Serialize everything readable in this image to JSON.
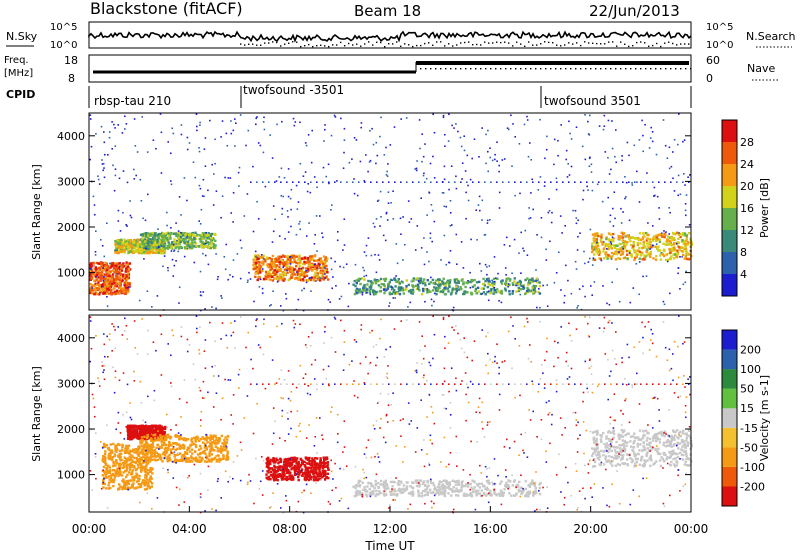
{
  "header": {
    "station": "Blackstone (fitACF)",
    "beam": "Beam 18",
    "date": "22/Jun/2013"
  },
  "top_panels": {
    "nsky_label": "N.Sky",
    "nsky_ticks": [
      "10^5",
      "10^0"
    ],
    "nsearch_label": "N.Search",
    "nsearch_ticks": [
      "10^5",
      "10^0"
    ],
    "freq_label_line1": "Freq.",
    "freq_label_line2": "[MHz]",
    "freq_ticks": [
      "18",
      "8"
    ],
    "nave_label": "Nave",
    "nave_ticks": [
      "60",
      "0"
    ],
    "cpid_label": "CPID",
    "cpid_segments": [
      {
        "label": "rbsp-tau 210",
        "start_hour": 0
      },
      {
        "label": "twofsound -3501",
        "start_hour": 6
      },
      {
        "label": "twofsound 3501",
        "start_hour": 18
      }
    ]
  },
  "chart_data": [
    {
      "type": "heatmap",
      "title": "",
      "xlabel": "",
      "ylabel": "Slant Range [km]",
      "xlim": [
        0,
        24
      ],
      "ylim": [
        180,
        4500
      ],
      "yticks": [
        1000,
        2000,
        3000,
        4000
      ],
      "colorbar": {
        "label": "Power [dB]",
        "ticks": [
          4,
          8,
          12,
          16,
          20,
          24,
          28
        ],
        "range": [
          0,
          32
        ],
        "colors": [
          "#1d1dd0",
          "#2c62ac",
          "#3a8a7a",
          "#66b04c",
          "#d2d21a",
          "#f59a14",
          "#ee5a0a",
          "#dc1010"
        ]
      },
      "scatter_regions": [
        {
          "t": [
            0.0,
            1.6
          ],
          "r": [
            550,
            1250
          ],
          "value": 26
        },
        {
          "t": [
            1.0,
            3.0
          ],
          "r": [
            1450,
            1750
          ],
          "value": 18
        },
        {
          "t": [
            2.0,
            5.0
          ],
          "r": [
            1550,
            1900
          ],
          "value": 14
        },
        {
          "t": [
            6.5,
            9.5
          ],
          "r": [
            850,
            1400
          ],
          "value": 24
        },
        {
          "t": [
            10.5,
            18.0
          ],
          "r": [
            550,
            900
          ],
          "value": 12
        },
        {
          "t": [
            20.0,
            24.0
          ],
          "r": [
            1300,
            1900
          ],
          "value": 20
        }
      ]
    },
    {
      "type": "heatmap",
      "title": "",
      "xlabel": "Time UT",
      "ylabel": "Slant Range [km]",
      "xlim": [
        0,
        24
      ],
      "ylim": [
        180,
        4500
      ],
      "xticks": [
        "00:00",
        "04:00",
        "08:00",
        "12:00",
        "16:00",
        "20:00",
        "00:00"
      ],
      "yticks": [
        1000,
        2000,
        3000,
        4000
      ],
      "colorbar": {
        "label": "Velocity [m s-1]",
        "ticks": [
          "200",
          "100",
          "50",
          "15",
          "-15",
          "-50",
          "-100",
          "-200"
        ],
        "range": [
          -250,
          250
        ],
        "colors": [
          "#dc1010",
          "#ee5a0a",
          "#f59a14",
          "#f5c030",
          "#c8c8c8",
          "#60c040",
          "#2c8a3c",
          "#2c62ac",
          "#1d1dd0"
        ]
      },
      "scatter_regions": [
        {
          "t": [
            0.5,
            2.5
          ],
          "r": [
            700,
            1700
          ],
          "value": -60
        },
        {
          "t": [
            1.5,
            3.0
          ],
          "r": [
            1800,
            2100
          ],
          "value": -220
        },
        {
          "t": [
            2.0,
            5.5
          ],
          "r": [
            1300,
            1900
          ],
          "value": -40
        },
        {
          "t": [
            7.0,
            9.5
          ],
          "r": [
            900,
            1400
          ],
          "value": -200
        },
        {
          "t": [
            10.5,
            18.0
          ],
          "r": [
            550,
            900
          ],
          "value": 0
        },
        {
          "t": [
            20.0,
            24.0
          ],
          "r": [
            1200,
            2000
          ],
          "value": 0
        }
      ]
    }
  ]
}
